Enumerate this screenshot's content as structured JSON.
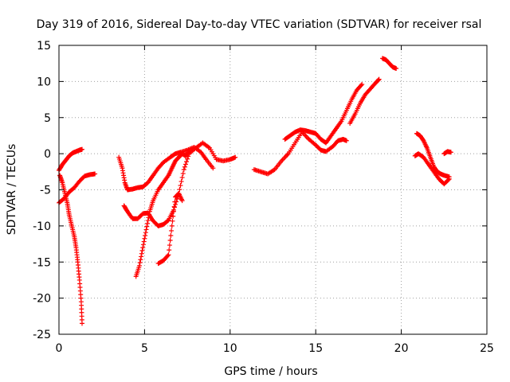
{
  "chart_data": {
    "type": "scatter",
    "title": "Day 319 of 2016, Sidereal Day-to-day VTEC variation (SDTVAR) for receiver rsal",
    "xlabel": "GPS time / hours",
    "ylabel": "SDTVAR / TECUs",
    "xlim": [
      0,
      25
    ],
    "ylim": [
      -25,
      15
    ],
    "x_ticks": [
      0,
      5,
      10,
      15,
      20,
      25
    ],
    "y_ticks": [
      -25,
      -20,
      -15,
      -10,
      -5,
      0,
      5,
      10,
      15
    ],
    "x_tick_labels": [
      "0",
      "5",
      "10",
      "15",
      "20",
      "25"
    ],
    "y_tick_labels": [
      "-25",
      "-20",
      "-15",
      "-10",
      "-5",
      "0",
      "5",
      "10",
      "15"
    ],
    "grid": true,
    "marker": "plus",
    "color": "#ff0000",
    "series": [
      {
        "x": [
          0.0,
          0.2,
          0.4,
          0.6,
          0.8,
          1.0,
          1.2,
          1.35
        ],
        "y": [
          -2.3,
          -1.5,
          -0.9,
          -0.3,
          0.1,
          0.3,
          0.5,
          0.6
        ]
      },
      {
        "x": [
          0.0,
          0.3,
          0.6,
          0.9,
          1.2,
          1.5,
          1.8,
          2.1
        ],
        "y": [
          -6.8,
          -6.2,
          -5.3,
          -4.7,
          -3.8,
          -3.1,
          -2.9,
          -2.8
        ]
      },
      {
        "x": [
          0.05,
          0.2,
          0.35,
          0.5,
          0.6,
          0.75,
          0.9,
          1.0,
          1.1,
          1.2,
          1.3,
          1.35
        ],
        "y": [
          -3.0,
          -4.0,
          -5.5,
          -7.0,
          -8.5,
          -10.0,
          -11.5,
          -13.0,
          -15.0,
          -17.5,
          -20.5,
          -23.5
        ]
      },
      {
        "x": [
          3.5,
          3.7,
          3.85,
          4.0,
          4.3,
          4.6,
          4.9,
          5.2,
          5.5,
          5.8,
          6.1,
          6.5,
          6.8,
          7.1,
          7.5,
          7.9,
          8.3,
          8.6,
          9.0
        ],
        "y": [
          -0.5,
          -2.0,
          -4.0,
          -5.0,
          -4.9,
          -4.7,
          -4.6,
          -4.0,
          -3.0,
          -2.0,
          -1.2,
          -0.5,
          0.0,
          0.2,
          0.5,
          0.9,
          0.2,
          -0.8,
          -2.0
        ]
      },
      {
        "x": [
          3.8,
          4.0,
          4.3,
          4.6,
          4.9,
          5.2,
          5.5,
          5.8,
          6.1,
          6.4,
          6.7,
          7.0,
          7.3,
          7.6,
          8.0,
          8.4,
          8.8,
          9.2,
          9.6,
          10.0,
          10.3
        ],
        "y": [
          -7.2,
          -8.0,
          -9.0,
          -9.0,
          -8.3,
          -8.2,
          -9.3,
          -10.0,
          -9.8,
          -9.2,
          -7.8,
          -5.5,
          -2.2,
          0.0,
          0.8,
          1.5,
          0.8,
          -0.8,
          -1.0,
          -0.8,
          -0.5
        ]
      },
      {
        "x": [
          4.5,
          4.7,
          4.9,
          5.1,
          5.3,
          5.5,
          5.8,
          6.1,
          6.4,
          6.6,
          6.8,
          7.0,
          7.2,
          7.4,
          7.6
        ],
        "y": [
          -17.0,
          -15.5,
          -13.0,
          -10.5,
          -8.0,
          -6.5,
          -5.0,
          -4.0,
          -3.0,
          -2.0,
          -1.0,
          -0.5,
          0.0,
          -0.3,
          0.3
        ]
      },
      {
        "x": [
          5.8,
          6.1,
          6.4,
          6.6,
          6.8,
          7.0,
          7.2
        ],
        "y": [
          -15.2,
          -14.8,
          -14.0,
          -10.0,
          -6.0,
          -5.5,
          -6.5
        ]
      },
      {
        "x": [
          11.4,
          11.8,
          12.2,
          12.6,
          13.0,
          13.4,
          13.8,
          14.2,
          14.6,
          15.0,
          15.3,
          15.6,
          16.0,
          16.3,
          16.6,
          16.8
        ],
        "y": [
          -2.2,
          -2.5,
          -2.8,
          -2.2,
          -1.0,
          0.0,
          1.5,
          3.0,
          2.0,
          1.2,
          0.5,
          0.3,
          1.0,
          1.8,
          2.0,
          1.8
        ]
      },
      {
        "x": [
          13.2,
          13.5,
          13.8,
          14.1,
          14.4,
          14.7,
          15.0,
          15.3,
          15.6,
          15.9,
          16.2,
          16.5,
          16.8,
          17.1,
          17.4,
          17.7
        ],
        "y": [
          2.0,
          2.5,
          3.0,
          3.3,
          3.2,
          3.0,
          2.8,
          2.0,
          1.5,
          2.5,
          3.5,
          4.5,
          6.0,
          7.5,
          8.8,
          9.6
        ]
      },
      {
        "x": [
          17.0,
          17.3,
          17.6,
          17.9,
          18.2,
          18.5,
          18.7
        ],
        "y": [
          4.2,
          5.5,
          7.0,
          8.2,
          9.0,
          9.8,
          10.3
        ]
      },
      {
        "x": [
          18.9,
          19.1,
          19.3,
          19.5,
          19.7
        ],
        "y": [
          13.2,
          13.0,
          12.5,
          12.0,
          11.8
        ]
      },
      {
        "x": [
          20.8,
          21.0,
          21.3,
          21.6,
          21.9,
          22.2,
          22.5,
          22.8
        ],
        "y": [
          -0.3,
          0.0,
          -0.5,
          -1.5,
          -2.5,
          -3.5,
          -4.2,
          -3.5
        ]
      },
      {
        "x": [
          20.9,
          21.1,
          21.3,
          21.5,
          21.7,
          21.9,
          22.1,
          22.3,
          22.5,
          22.8
        ],
        "y": [
          2.8,
          2.5,
          1.8,
          0.8,
          -0.5,
          -1.8,
          -2.5,
          -2.8,
          -3.0,
          -3.2
        ]
      },
      {
        "x": [
          22.5,
          22.7,
          22.9
        ],
        "y": [
          0.0,
          0.3,
          0.2
        ]
      }
    ]
  }
}
